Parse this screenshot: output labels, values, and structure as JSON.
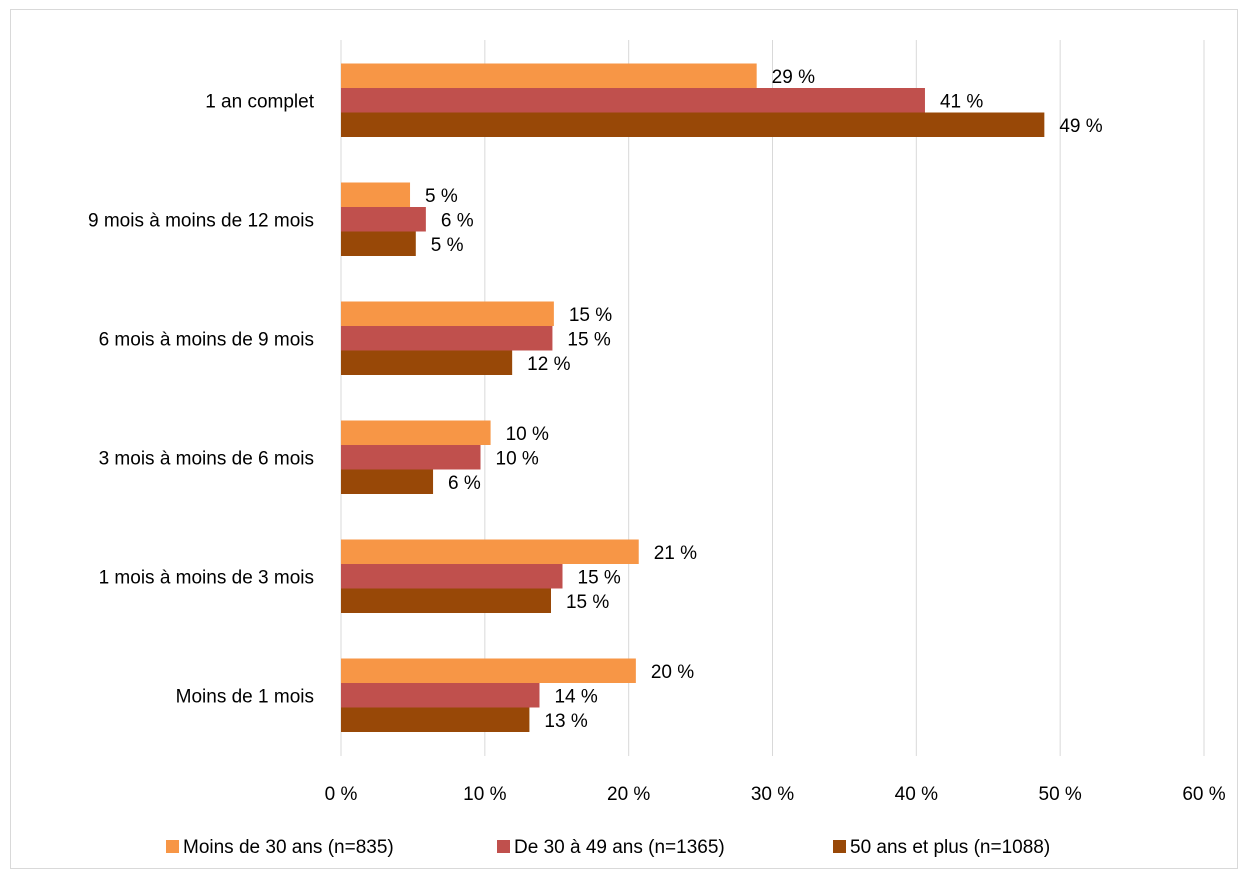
{
  "chart_data": {
    "type": "bar",
    "orientation": "horizontal",
    "title": "",
    "xlabel": "",
    "ylabel": "",
    "xlim": [
      0,
      60
    ],
    "x_ticks": [
      0,
      10,
      20,
      30,
      40,
      50,
      60
    ],
    "tick_suffix": " %",
    "grid": true,
    "legend_position": "bottom",
    "categories": [
      "1 an complet",
      "9 mois à moins de 12 mois",
      "6 mois à moins de 9 mois",
      "3 mois à moins de 6 mois",
      "1 mois à moins de 3 mois",
      "Moins de 1 mois"
    ],
    "series": [
      {
        "name": "Moins de 30 ans (n=835)",
        "color": "#f79646",
        "values": [
          28.9,
          4.8,
          14.8,
          10.4,
          20.7,
          20.5
        ],
        "labels": [
          "29 %",
          "5 %",
          "15 %",
          "10 %",
          "21 %",
          "20 %"
        ]
      },
      {
        "name": "De 30 à 49 ans (n=1365)",
        "color": "#c0504d",
        "values": [
          40.6,
          5.9,
          14.7,
          9.7,
          15.4,
          13.8
        ],
        "labels": [
          "41 %",
          "6 %",
          "15 %",
          "10 %",
          "15 %",
          "14 %"
        ]
      },
      {
        "name": "50 ans et plus (n=1088)",
        "color": "#984807",
        "values": [
          48.9,
          5.2,
          11.9,
          6.4,
          14.6,
          13.1
        ],
        "labels": [
          "49 %",
          "5 %",
          "12 %",
          "6 %",
          "15 %",
          "13 %"
        ]
      }
    ]
  }
}
